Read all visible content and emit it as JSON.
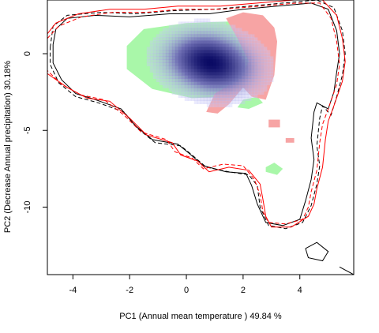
{
  "chart_data": {
    "type": "heatmap",
    "title": "",
    "xlabel": "PC1 (Annual mean temperature ) 49.84 %",
    "ylabel": "PC2 (Decrease Annual precipitation) 30.18%",
    "xlim": [
      -4.9,
      5.9
    ],
    "ylim": [
      -14.4,
      3.5
    ],
    "x_ticks": [
      -4,
      -2,
      0,
      2,
      4
    ],
    "y_ticks": [
      0,
      -5,
      -10
    ],
    "grid": false,
    "density": {
      "colormap": "white-to-navy",
      "peaks": [
        {
          "x": 0.5,
          "y": -0.1,
          "sigma_x": 0.9,
          "sigma_y": 1.1,
          "weight": 1.0
        },
        {
          "x": 1.2,
          "y": -1.1,
          "sigma_x": 0.9,
          "sigma_y": 1.1,
          "weight": 1.0
        }
      ]
    },
    "regions": [
      {
        "name": "",
        "color": "#a9f7a9",
        "polygons": [
          [
            [
              -2.1,
              0.5
            ],
            [
              -1.5,
              1.6
            ],
            [
              0,
              2.0
            ],
            [
              1.5,
              2.1
            ],
            [
              2.5,
              1.7
            ],
            [
              2.5,
              0.5
            ],
            [
              2.2,
              -1.5
            ],
            [
              1.4,
              -2.8
            ],
            [
              0.2,
              -2.9
            ],
            [
              -1.2,
              -2.3
            ],
            [
              -2.1,
              -1.0
            ]
          ],
          [
            [
              2.0,
              -3.0
            ],
            [
              2.5,
              -2.8
            ],
            [
              2.7,
              -3.2
            ],
            [
              2.2,
              -3.6
            ],
            [
              1.8,
              -3.5
            ]
          ],
          [
            [
              2.8,
              -7.4
            ],
            [
              3.1,
              -7.1
            ],
            [
              3.4,
              -7.5
            ],
            [
              3.2,
              -7.9
            ],
            [
              2.8,
              -7.7
            ]
          ]
        ]
      },
      {
        "name": "",
        "color": "#f7a4a4",
        "polygons": [
          [
            [
              1.4,
              2.3
            ],
            [
              2.0,
              2.7
            ],
            [
              2.7,
              2.5
            ],
            [
              3.1,
              1.7
            ],
            [
              3.2,
              0.8
            ],
            [
              3.1,
              -1.4
            ],
            [
              2.8,
              -3.0
            ],
            [
              2.3,
              -2.8
            ],
            [
              2.0,
              -2.2
            ],
            [
              1.5,
              -3.3
            ],
            [
              1.1,
              -3.9
            ],
            [
              0.7,
              -3.8
            ],
            [
              1.0,
              -2.6
            ],
            [
              1.9,
              -1.6
            ],
            [
              2.2,
              -0.5
            ],
            [
              1.8,
              1.0
            ]
          ],
          [
            [
              2.9,
              -4.3
            ],
            [
              3.3,
              -4.3
            ],
            [
              3.3,
              -4.8
            ],
            [
              2.9,
              -4.8
            ]
          ],
          [
            [
              3.5,
              -5.5
            ],
            [
              3.8,
              -5.5
            ],
            [
              3.8,
              -5.8
            ],
            [
              3.5,
              -5.8
            ]
          ]
        ]
      }
    ],
    "series": [
      {
        "color": "#000000",
        "dash": "solid",
        "points": [
          [
            -4.7,
            0.6
          ],
          [
            -4.6,
            1.6
          ],
          [
            -4.2,
            2.3
          ],
          [
            -3.2,
            2.5
          ],
          [
            -2.0,
            2.4
          ],
          [
            -0.6,
            2.6
          ],
          [
            0.8,
            2.6
          ],
          [
            2.0,
            2.9
          ],
          [
            3.2,
            3.1
          ],
          [
            4.4,
            3.3
          ],
          [
            5.0,
            2.9
          ],
          [
            5.3,
            1.5
          ],
          [
            5.4,
            0.0
          ],
          [
            5.3,
            -1.2
          ],
          [
            5.2,
            -2.5
          ],
          [
            5.0,
            -3.6
          ],
          [
            4.6,
            -3.2
          ],
          [
            4.5,
            -3.8
          ],
          [
            4.4,
            -5.5
          ],
          [
            4.5,
            -6.9
          ],
          [
            4.4,
            -8.2
          ],
          [
            4.2,
            -9.6
          ],
          [
            4.0,
            -10.8
          ],
          [
            3.4,
            -11.2
          ],
          [
            2.8,
            -11.0
          ],
          [
            2.5,
            -9.8
          ],
          [
            2.3,
            -8.6
          ],
          [
            2.1,
            -7.8
          ],
          [
            1.4,
            -7.7
          ],
          [
            0.6,
            -7.3
          ],
          [
            0.1,
            -6.5
          ],
          [
            -0.3,
            -5.9
          ],
          [
            -1.2,
            -5.6
          ],
          [
            -1.8,
            -4.7
          ],
          [
            -2.3,
            -3.6
          ],
          [
            -3.2,
            -3.0
          ],
          [
            -3.9,
            -2.6
          ],
          [
            -4.4,
            -1.7
          ],
          [
            -4.7,
            -0.6
          ],
          [
            -4.7,
            0.6
          ]
        ]
      },
      {
        "color": "#000000",
        "dash": "dashed",
        "points": [
          [
            -4.8,
            0.4
          ],
          [
            -4.7,
            1.8
          ],
          [
            -4.2,
            2.5
          ],
          [
            -3.0,
            2.7
          ],
          [
            -1.8,
            2.6
          ],
          [
            -0.5,
            2.8
          ],
          [
            1.0,
            2.9
          ],
          [
            2.2,
            3.1
          ],
          [
            3.4,
            3.3
          ],
          [
            4.6,
            3.5
          ],
          [
            5.2,
            3.0
          ],
          [
            5.5,
            1.5
          ],
          [
            5.6,
            0.0
          ],
          [
            5.5,
            -1.4
          ],
          [
            5.3,
            -2.8
          ],
          [
            5.1,
            -4.0
          ],
          [
            4.8,
            -3.4
          ],
          [
            4.7,
            -4.2
          ],
          [
            4.6,
            -6.0
          ],
          [
            4.7,
            -7.3
          ],
          [
            4.6,
            -8.5
          ],
          [
            4.4,
            -9.9
          ],
          [
            4.1,
            -11.0
          ],
          [
            3.5,
            -11.4
          ],
          [
            2.9,
            -11.2
          ],
          [
            2.6,
            -10.0
          ],
          [
            2.5,
            -8.6
          ],
          [
            2.2,
            -7.9
          ],
          [
            1.5,
            -7.7
          ],
          [
            0.7,
            -7.4
          ],
          [
            0.2,
            -6.6
          ],
          [
            -0.2,
            -6.0
          ],
          [
            -1.1,
            -5.8
          ],
          [
            -1.7,
            -4.9
          ],
          [
            -2.2,
            -3.8
          ],
          [
            -3.1,
            -3.2
          ],
          [
            -3.9,
            -2.8
          ],
          [
            -4.5,
            -1.9
          ],
          [
            -4.8,
            -0.7
          ],
          [
            -4.8,
            0.4
          ]
        ]
      },
      {
        "color": "#ff0000",
        "dash": "solid",
        "points": [
          [
            -4.9,
            1.3
          ],
          [
            -4.6,
            2.0
          ],
          [
            -3.8,
            2.6
          ],
          [
            -2.7,
            2.9
          ],
          [
            -1.5,
            2.9
          ],
          [
            -0.3,
            3.1
          ],
          [
            1.2,
            3.1
          ],
          [
            2.5,
            3.3
          ],
          [
            3.8,
            3.5
          ],
          [
            4.8,
            3.5
          ],
          [
            5.3,
            2.5
          ],
          [
            5.5,
            1.0
          ],
          [
            5.6,
            -0.5
          ],
          [
            5.5,
            -1.8
          ],
          [
            5.2,
            -3.4
          ],
          [
            5.0,
            -4.4
          ],
          [
            4.9,
            -5.6
          ],
          [
            4.8,
            -7.4
          ],
          [
            4.6,
            -8.8
          ],
          [
            4.5,
            -9.8
          ],
          [
            4.3,
            -10.6
          ],
          [
            3.7,
            -11.3
          ],
          [
            3.0,
            -11.3
          ],
          [
            2.8,
            -10.6
          ],
          [
            2.7,
            -9.5
          ],
          [
            2.6,
            -8.5
          ],
          [
            2.2,
            -7.6
          ],
          [
            1.5,
            -7.4
          ],
          [
            0.8,
            -7.7
          ],
          [
            0.4,
            -7.0
          ],
          [
            -0.2,
            -6.6
          ],
          [
            -0.5,
            -5.8
          ],
          [
            -1.4,
            -5.3
          ],
          [
            -2.0,
            -4.2
          ],
          [
            -2.7,
            -3.1
          ],
          [
            -3.5,
            -2.9
          ],
          [
            -4.2,
            -2.2
          ],
          [
            -4.9,
            -1.3
          ]
        ]
      },
      {
        "color": "#ff0000",
        "dash": "dashed",
        "points": [
          [
            -4.9,
            1.0
          ],
          [
            -4.5,
            1.8
          ],
          [
            -3.7,
            2.4
          ],
          [
            -2.6,
            2.7
          ],
          [
            -1.4,
            2.7
          ],
          [
            -0.2,
            2.9
          ],
          [
            1.3,
            2.9
          ],
          [
            2.6,
            3.1
          ],
          [
            3.9,
            3.3
          ],
          [
            4.7,
            3.3
          ],
          [
            5.1,
            2.3
          ],
          [
            5.3,
            0.8
          ],
          [
            5.4,
            -0.7
          ],
          [
            5.3,
            -2.0
          ],
          [
            5.0,
            -3.6
          ],
          [
            4.8,
            -4.6
          ],
          [
            4.7,
            -5.8
          ],
          [
            4.6,
            -7.6
          ],
          [
            4.4,
            -9.0
          ],
          [
            4.3,
            -10.0
          ],
          [
            4.1,
            -10.8
          ],
          [
            3.5,
            -11.1
          ],
          [
            2.9,
            -11.0
          ],
          [
            2.7,
            -10.3
          ],
          [
            2.6,
            -9.2
          ],
          [
            2.4,
            -8.2
          ],
          [
            2.0,
            -7.3
          ],
          [
            1.3,
            -7.2
          ],
          [
            0.6,
            -7.5
          ],
          [
            0.2,
            -6.8
          ],
          [
            -0.4,
            -6.4
          ],
          [
            -0.7,
            -5.6
          ],
          [
            -1.6,
            -5.1
          ],
          [
            -2.2,
            -4.0
          ],
          [
            -2.9,
            -3.0
          ],
          [
            -3.7,
            -2.7
          ],
          [
            -4.4,
            -2.0
          ],
          [
            -4.9,
            -1.1
          ]
        ]
      },
      {
        "color": "#000000",
        "dash": "solid",
        "points": [
          [
            4.2,
            -12.7
          ],
          [
            4.6,
            -12.3
          ],
          [
            5.0,
            -12.9
          ],
          [
            4.8,
            -13.5
          ],
          [
            4.3,
            -13.3
          ],
          [
            4.2,
            -12.7
          ]
        ]
      },
      {
        "color": "#000000",
        "dash": "solid",
        "points": [
          [
            5.4,
            -13.9
          ],
          [
            5.9,
            -14.4
          ]
        ]
      }
    ]
  }
}
